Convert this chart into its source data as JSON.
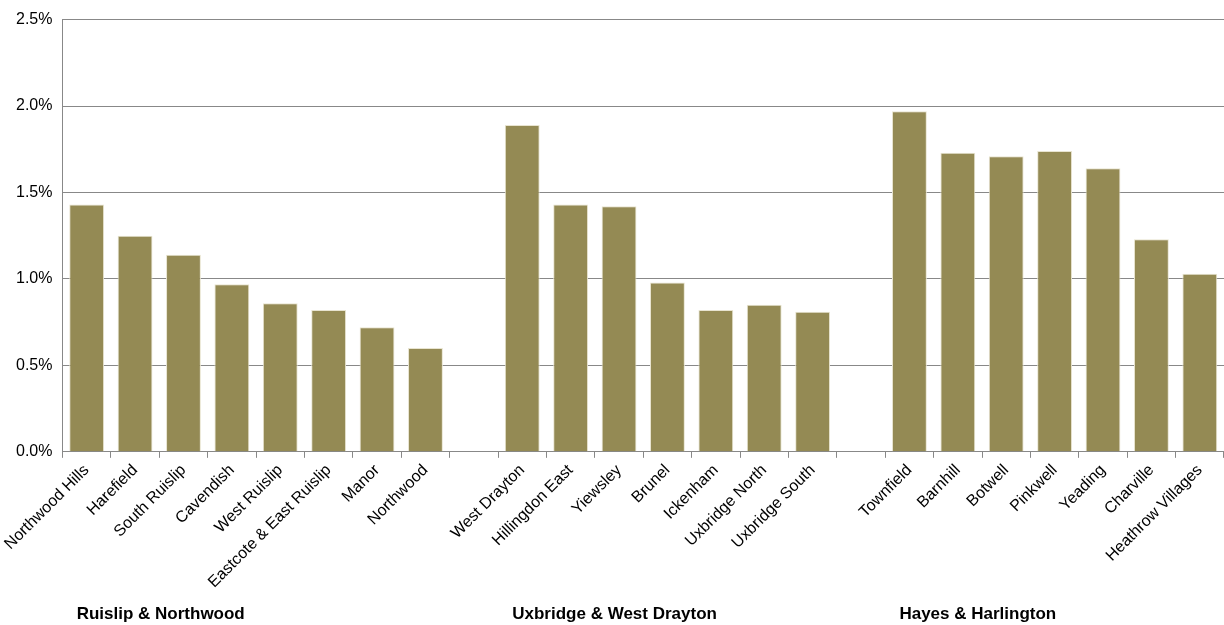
{
  "chart_data": {
    "type": "bar",
    "categories": [
      "Northwood Hills",
      "Harefield",
      "South Ruislip",
      "Cavendish",
      "West Ruislip",
      "Eastcote & East Ruislip",
      "Manor",
      "Northwood",
      null,
      "West Drayton",
      "Hillingdon East",
      "Yiewsley",
      "Brunel",
      "Ickenham",
      "Uxbridge North",
      "Uxbridge South",
      null,
      "Townfield",
      "Barnhill",
      "Botwell",
      "Pinkwell",
      "Yeading",
      "Charville",
      "Heathrow Villages"
    ],
    "values": [
      1.43,
      1.25,
      1.14,
      0.97,
      0.86,
      0.82,
      0.72,
      0.6,
      null,
      1.89,
      1.43,
      1.42,
      0.98,
      0.82,
      0.85,
      0.81,
      null,
      1.97,
      1.73,
      1.71,
      1.74,
      1.64,
      1.23,
      1.03
    ],
    "color": "#948a54",
    "ylim": [
      0,
      2.5
    ],
    "yticks": [
      {
        "value": 0,
        "label": "0.0%"
      },
      {
        "value": 0.5,
        "label": "0.5%"
      },
      {
        "value": 1,
        "label": "1.0%"
      },
      {
        "value": 1.5,
        "label": "1.5%"
      },
      {
        "value": 2,
        "label": "2.0%"
      },
      {
        "value": 2.5,
        "label": "2.5%"
      }
    ],
    "grid": "y",
    "annotations": [
      "Ruislip & Northwood",
      "Uxbridge & West Drayton",
      "Hayes & Harlington"
    ]
  }
}
